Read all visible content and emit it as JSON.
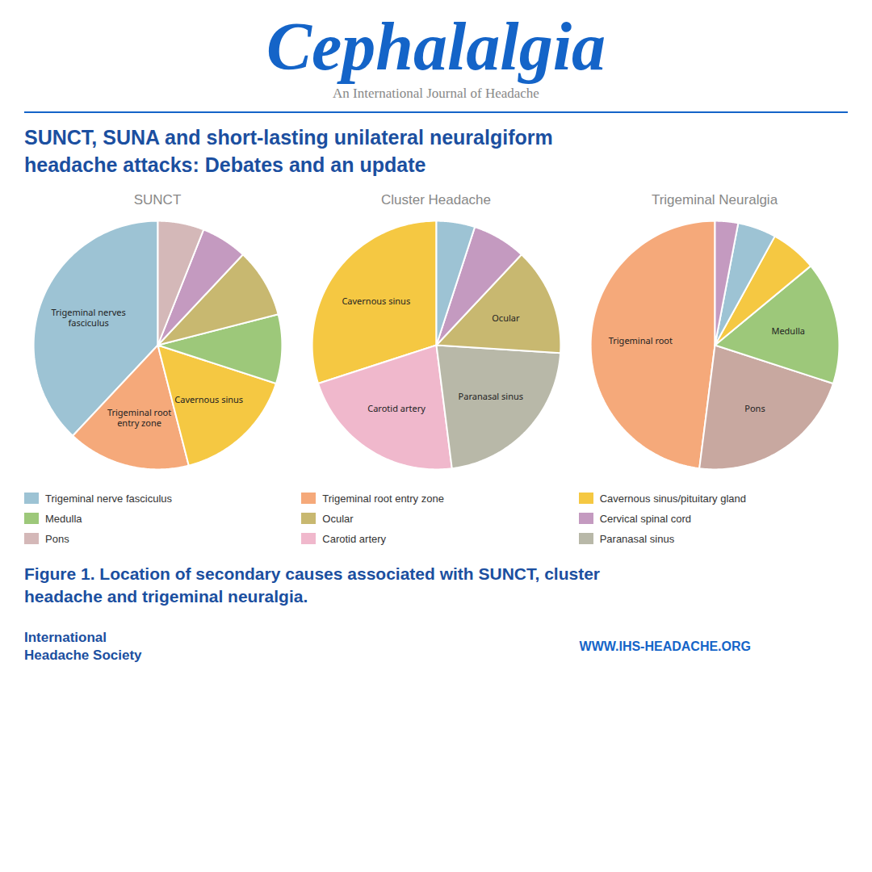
{
  "title": "Cephalalgia",
  "subtitle": "An International Journal of Headache",
  "annotations": [
    "SUNCT, SUNA and short-lasting unilateral neuralgiform",
    "headache attacks: Debates and an update",
    "Figure 1. Location of secondary causes associated with SUNCT, cluster",
    "headache and trigeminal neuralgia.",
    "International",
    "Headache Society",
    "WWW.IHS-HEADACHE.ORG"
  ],
  "legend_entries": [
    {
      "name": "Trigeminal nerve fasciculus",
      "color": "#9DC3D4"
    },
    {
      "name": "Trigeminal root entry zone",
      "color": "#F5A97A"
    },
    {
      "name": "Cavernous sinus/pituitary gland",
      "color": "#F5C842"
    },
    {
      "name": "Medulla",
      "color": "#9DC87A"
    },
    {
      "name": "Ocular",
      "color": "#C8B870"
    },
    {
      "name": "Cervical spinal cord",
      "color": "#C49AC0"
    },
    {
      "name": "Pons",
      "color": "#D4B8B8"
    },
    {
      "name": "Carotid artery",
      "color": "#F0B8CC"
    },
    {
      "name": "Paranasal sinus",
      "color": "#B8B8A8"
    }
  ],
  "chart_data": [
    {
      "type": "pie",
      "title": "SUNCT",
      "categories": [
        "Trigeminal nerves\nfasciculus",
        "Trigeminal root\nentry zone",
        "Cavernous sinus",
        null,
        null,
        null,
        null
      ],
      "values": [
        38,
        16,
        16,
        9,
        9,
        6,
        6
      ],
      "colors": [
        "#9DC3D4",
        "#F5A97A",
        "#F5C842",
        "#9DC87A",
        "#C8B870",
        "#C49AC0",
        "#D4B8B8"
      ]
    },
    {
      "type": "pie",
      "title": "Cluster Headache",
      "categories": [
        "Cavernous sinus",
        "Carotid artery",
        "Paranasal sinus",
        "Ocular",
        null,
        null
      ],
      "values": [
        30,
        22,
        22,
        14,
        7,
        5
      ],
      "colors": [
        "#F5C842",
        "#F0B8CC",
        "#B8B8A8",
        "#C8B870",
        "#C49AC0",
        "#9DC3D4"
      ]
    },
    {
      "type": "pie",
      "title": "Trigeminal Neuralgia",
      "categories": [
        "Trigeminal root",
        "Pons",
        "Medulla",
        null,
        null,
        null
      ],
      "values": [
        48,
        22,
        16,
        6,
        5,
        3
      ],
      "colors": [
        "#F5A97A",
        "#C8A8A0",
        "#9DC87A",
        "#F5C842",
        "#9DC3D4",
        "#C49AC0"
      ]
    }
  ]
}
